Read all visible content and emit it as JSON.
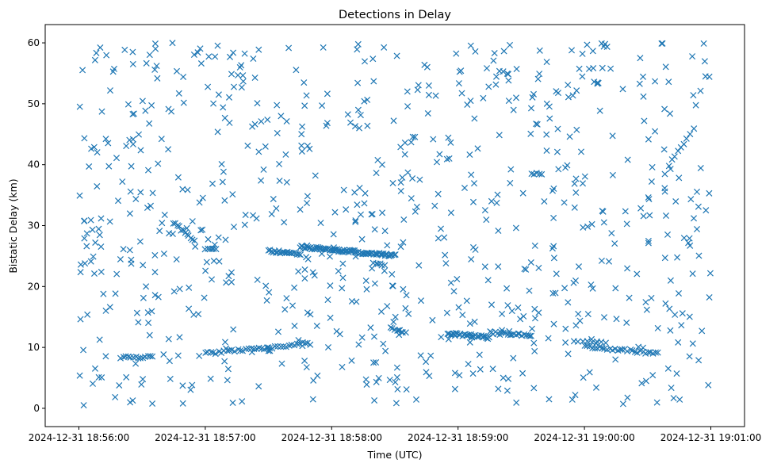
{
  "chart_data": {
    "type": "scatter",
    "title": "Detections in Delay",
    "xlabel": "Time (UTC)",
    "ylabel": "Bistatic Delay (km)",
    "marker": "x",
    "color": "#1f77b4",
    "grid": false,
    "x_unit": "UTC datetime",
    "xlim": [
      "2024-12-31 18:55:44",
      "2024-12-31 19:01:16"
    ],
    "ylim": [
      -3,
      63
    ],
    "x_ticks": [
      "2024-12-31 18:56:00",
      "2024-12-31 18:57:00",
      "2024-12-31 18:58:00",
      "2024-12-31 18:59:00",
      "2024-12-31 19:00:00",
      "2024-12-31 19:01:00"
    ],
    "y_ticks": [
      "0",
      "10",
      "20",
      "30",
      "40",
      "50",
      "60"
    ],
    "clutter": {
      "count": 760,
      "x_range": [
        "2024-12-31 18:56:00",
        "2024-12-31 19:01:00"
      ],
      "y_range": [
        0.5,
        60
      ],
      "distribution": "uniform"
    },
    "tracks": [
      {
        "start": [
          "2024-12-31 18:56:45",
          30.5
        ],
        "end": [
          "2024-12-31 18:56:55",
          27.5
        ],
        "points": 12
      },
      {
        "start": [
          "2024-12-31 18:56:20",
          8.3
        ],
        "end": [
          "2024-12-31 18:56:35",
          8.5
        ],
        "points": 14
      },
      {
        "start": [
          "2024-12-31 18:57:00",
          26.3
        ],
        "end": [
          "2024-12-31 18:57:05",
          26.1
        ],
        "points": 6
      },
      {
        "start": [
          "2024-12-31 18:57:00",
          9.0
        ],
        "end": [
          "2024-12-31 18:57:50",
          10.6
        ],
        "points": 40
      },
      {
        "start": [
          "2024-12-31 18:57:30",
          25.9
        ],
        "end": [
          "2024-12-31 18:57:45",
          25.2
        ],
        "points": 22
      },
      {
        "start": [
          "2024-12-31 18:57:45",
          26.5
        ],
        "end": [
          "2024-12-31 18:58:30",
          25.1
        ],
        "points": 85
      },
      {
        "start": [
          "2024-12-31 18:58:20",
          23.8
        ],
        "end": [
          "2024-12-31 18:58:25",
          23.5
        ],
        "points": 6
      },
      {
        "start": [
          "2024-12-31 18:58:28",
          13.4
        ],
        "end": [
          "2024-12-31 18:58:35",
          12.3
        ],
        "points": 8
      },
      {
        "start": [
          "2024-12-31 18:58:55",
          12.3
        ],
        "end": [
          "2024-12-31 18:59:15",
          11.6
        ],
        "points": 30
      },
      {
        "start": [
          "2024-12-31 18:59:15",
          12.4
        ],
        "end": [
          "2024-12-31 18:59:35",
          11.9
        ],
        "points": 22
      },
      {
        "start": [
          "2024-12-31 18:59:35",
          38.7
        ],
        "end": [
          "2024-12-31 18:59:40",
          38.2
        ],
        "points": 5
      },
      {
        "start": [
          "2024-12-31 18:59:55",
          11.2
        ],
        "end": [
          "2024-12-31 19:00:10",
          10.6
        ],
        "points": 8
      },
      {
        "start": [
          "2024-12-31 19:00:00",
          10.2
        ],
        "end": [
          "2024-12-31 19:00:35",
          9.0
        ],
        "points": 30
      },
      {
        "start": [
          "2024-12-31 19:00:40",
          40.0
        ],
        "end": [
          "2024-12-31 19:00:50",
          45.0
        ],
        "points": 8
      }
    ]
  }
}
